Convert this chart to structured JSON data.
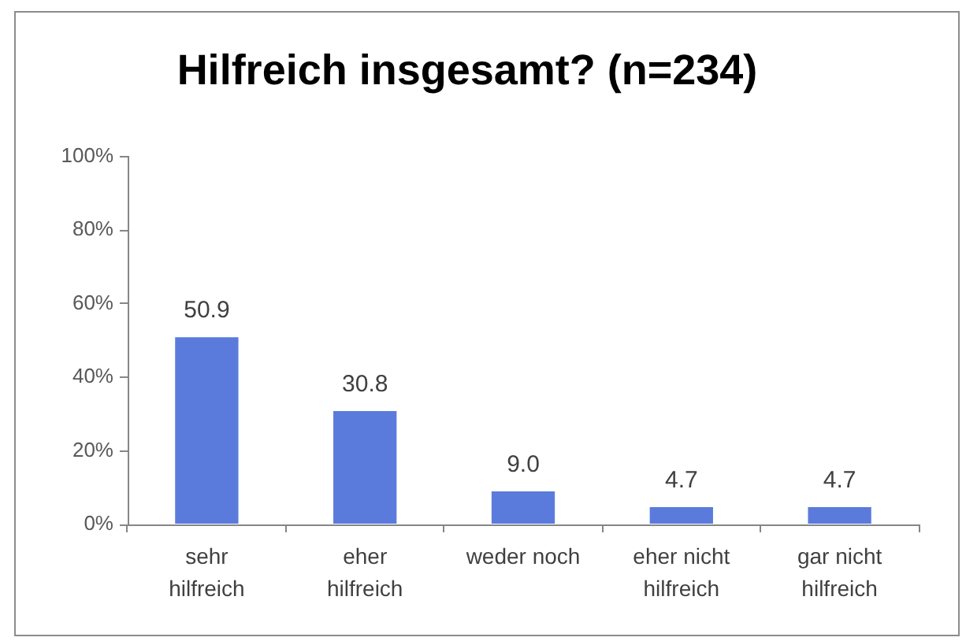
{
  "chart_data": {
    "type": "bar",
    "title": "Hilfreich insgesamt? (n=234)",
    "categories": [
      "sehr\nhilfreich",
      "eher\nhilfreich",
      "weder noch",
      "eher nicht\nhilfreich",
      "gar nicht\nhilfreich"
    ],
    "values": [
      50.9,
      30.8,
      9.0,
      4.7,
      4.7
    ],
    "value_labels": [
      "50.9",
      "30.8",
      "9.0",
      "4.7",
      "4.7"
    ],
    "color": "#5b7bdc",
    "ylim": [
      0,
      100
    ],
    "yticks": [
      {
        "value": 0,
        "label": "0%"
      },
      {
        "value": 20,
        "label": "20%"
      },
      {
        "value": 40,
        "label": "40%"
      },
      {
        "value": 60,
        "label": "60%"
      },
      {
        "value": 80,
        "label": "80%"
      },
      {
        "value": 100,
        "label": "100%"
      }
    ]
  }
}
